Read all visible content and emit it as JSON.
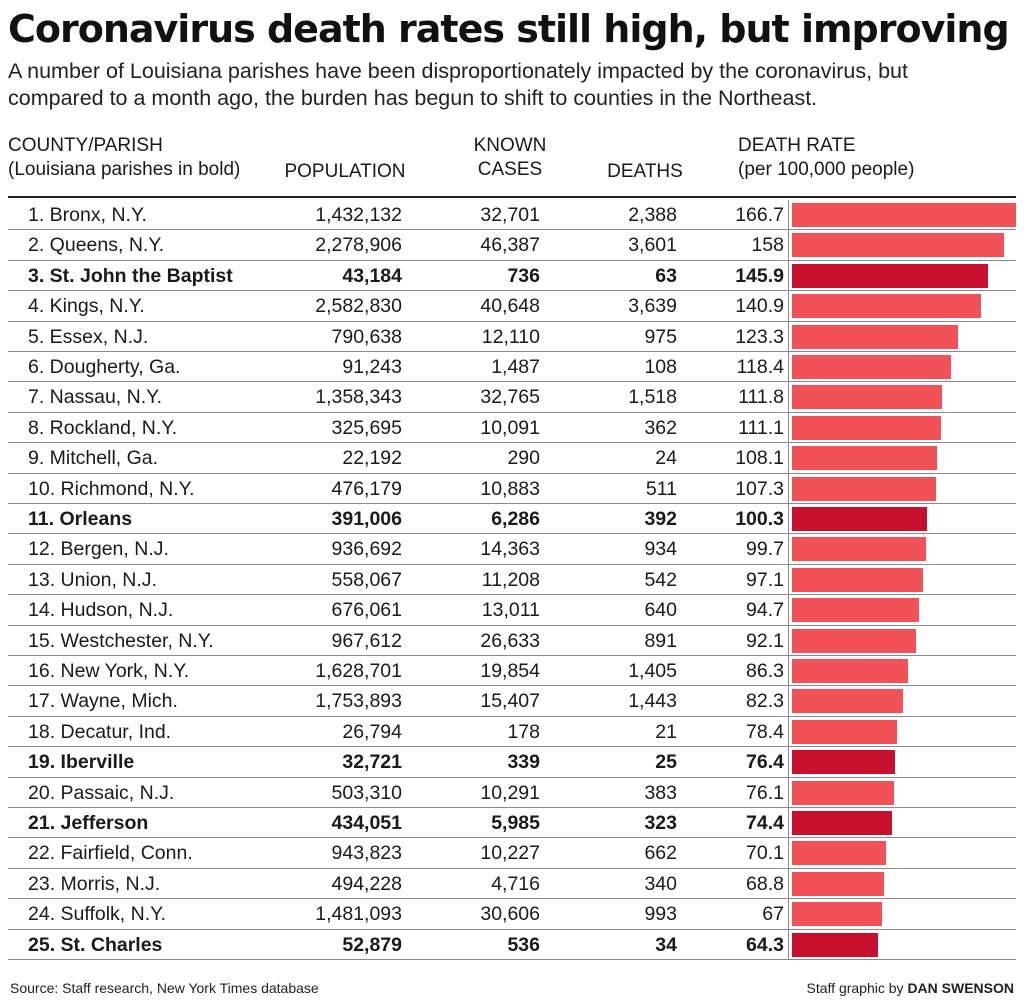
{
  "title": "Coronavirus death rates still high, but improving",
  "subtitle": "A number of Louisiana parishes have been disproportionately impacted by the coronavirus, but compared to a month ago, the burden has begun to shift to counties in the Northeast.",
  "headers": {
    "county_line1": "COUNTY/PARISH",
    "county_line2": "(Louisiana parishes in bold)",
    "population": "POPULATION",
    "cases_line1": "KNOWN",
    "cases_line2": "CASES",
    "deaths": "DEATHS",
    "rate_line1": "DEATH RATE",
    "rate_line2": "(per 100,000 people)"
  },
  "colors": {
    "bar": "#f05257",
    "bar_louisiana": "#c8102e"
  },
  "source": "Source: Staff research, New York Times database",
  "credit_prefix": "Staff graphic by",
  "credit_name": "DAN SWENSON",
  "chart_data": {
    "type": "bar",
    "orientation": "horizontal",
    "value_axis_max": 166.7,
    "rows": [
      {
        "rank": "1.",
        "name": "Bronx, N.Y.",
        "population": "1,432,132",
        "cases": "32,701",
        "deaths": "2,388",
        "rate": 166.7,
        "louisiana": false
      },
      {
        "rank": "2.",
        "name": "Queens, N.Y.",
        "population": "2,278,906",
        "cases": "46,387",
        "deaths": "3,601",
        "rate": 158,
        "louisiana": false
      },
      {
        "rank": "3.",
        "name": "St. John the Baptist",
        "population": "43,184",
        "cases": "736",
        "deaths": "63",
        "rate": 145.9,
        "louisiana": true
      },
      {
        "rank": "4.",
        "name": "Kings, N.Y.",
        "population": "2,582,830",
        "cases": "40,648",
        "deaths": "3,639",
        "rate": 140.9,
        "louisiana": false
      },
      {
        "rank": "5.",
        "name": "Essex, N.J.",
        "population": "790,638",
        "cases": "12,110",
        "deaths": "975",
        "rate": 123.3,
        "louisiana": false
      },
      {
        "rank": "6.",
        "name": "Dougherty, Ga.",
        "population": "91,243",
        "cases": "1,487",
        "deaths": "108",
        "rate": 118.4,
        "louisiana": false
      },
      {
        "rank": "7.",
        "name": "Nassau, N.Y.",
        "population": "1,358,343",
        "cases": "32,765",
        "deaths": "1,518",
        "rate": 111.8,
        "louisiana": false
      },
      {
        "rank": "8.",
        "name": "Rockland, N.Y.",
        "population": "325,695",
        "cases": "10,091",
        "deaths": "362",
        "rate": 111.1,
        "louisiana": false
      },
      {
        "rank": "9.",
        "name": "Mitchell, Ga.",
        "population": "22,192",
        "cases": "290",
        "deaths": "24",
        "rate": 108.1,
        "louisiana": false
      },
      {
        "rank": "10.",
        "name": "Richmond, N.Y.",
        "population": "476,179",
        "cases": "10,883",
        "deaths": "511",
        "rate": 107.3,
        "louisiana": false
      },
      {
        "rank": "11.",
        "name": "Orleans",
        "population": "391,006",
        "cases": "6,286",
        "deaths": "392",
        "rate": 100.3,
        "louisiana": true
      },
      {
        "rank": "12.",
        "name": "Bergen, N.J.",
        "population": "936,692",
        "cases": "14,363",
        "deaths": "934",
        "rate": 99.7,
        "louisiana": false
      },
      {
        "rank": "13.",
        "name": "Union, N.J.",
        "population": "558,067",
        "cases": "11,208",
        "deaths": "542",
        "rate": 97.1,
        "louisiana": false
      },
      {
        "rank": "14.",
        "name": "Hudson, N.J.",
        "population": "676,061",
        "cases": "13,011",
        "deaths": "640",
        "rate": 94.7,
        "louisiana": false
      },
      {
        "rank": "15.",
        "name": "Westchester, N.Y.",
        "population": "967,612",
        "cases": "26,633",
        "deaths": "891",
        "rate": 92.1,
        "louisiana": false
      },
      {
        "rank": "16.",
        "name": "New York, N.Y.",
        "population": "1,628,701",
        "cases": "19,854",
        "deaths": "1,405",
        "rate": 86.3,
        "louisiana": false
      },
      {
        "rank": "17.",
        "name": "Wayne, Mich.",
        "population": "1,753,893",
        "cases": "15,407",
        "deaths": "1,443",
        "rate": 82.3,
        "louisiana": false
      },
      {
        "rank": "18.",
        "name": "Decatur, Ind.",
        "population": "26,794",
        "cases": "178",
        "deaths": "21",
        "rate": 78.4,
        "louisiana": false
      },
      {
        "rank": "19.",
        "name": "Iberville",
        "population": "32,721",
        "cases": "339",
        "deaths": "25",
        "rate": 76.4,
        "louisiana": true
      },
      {
        "rank": "20.",
        "name": "Passaic, N.J.",
        "population": "503,310",
        "cases": "10,291",
        "deaths": "383",
        "rate": 76.1,
        "louisiana": false
      },
      {
        "rank": "21.",
        "name": "Jefferson",
        "population": "434,051",
        "cases": "5,985",
        "deaths": "323",
        "rate": 74.4,
        "louisiana": true
      },
      {
        "rank": "22.",
        "name": "Fairfield, Conn.",
        "population": "943,823",
        "cases": "10,227",
        "deaths": "662",
        "rate": 70.1,
        "louisiana": false
      },
      {
        "rank": "23.",
        "name": "Morris, N.J.",
        "population": "494,228",
        "cases": "4,716",
        "deaths": "340",
        "rate": 68.8,
        "louisiana": false
      },
      {
        "rank": "24.",
        "name": "Suffolk, N.Y.",
        "population": "1,481,093",
        "cases": "30,606",
        "deaths": "993",
        "rate": 67,
        "louisiana": false
      },
      {
        "rank": "25.",
        "name": "St. Charles",
        "population": "52,879",
        "cases": "536",
        "deaths": "34",
        "rate": 64.3,
        "louisiana": true
      }
    ]
  }
}
